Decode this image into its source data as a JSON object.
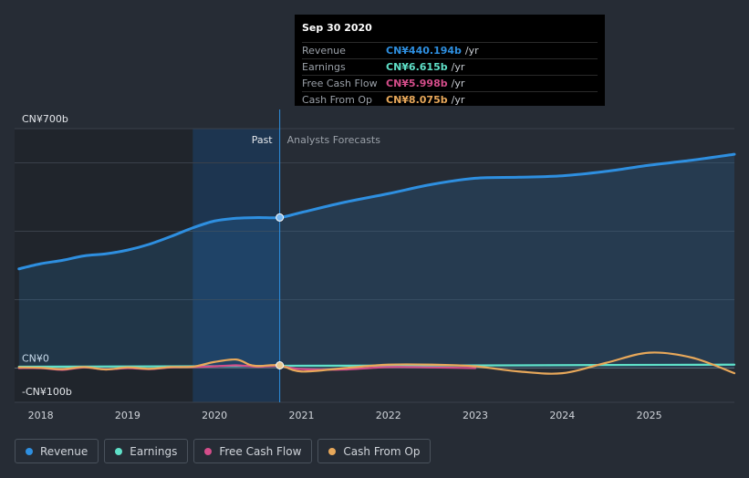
{
  "chart_data": {
    "type": "area",
    "ylabel_top": "CN¥700b",
    "ylabel_zero": "CN¥0",
    "ylabel_bottom": "-CN¥100b",
    "ylim": [
      -100,
      700
    ],
    "xlim": [
      2017.7,
      2025.98
    ],
    "x_ticks": [
      "2018",
      "2019",
      "2020",
      "2021",
      "2022",
      "2023",
      "2024",
      "2025"
    ],
    "past_label": "Past",
    "forecast_label": "Analysts Forecasts",
    "divider_x": 2020.75,
    "series": [
      {
        "name": "Revenue",
        "color": "#2e8fe0",
        "fill": true,
        "x": [
          2017.75,
          2018.0,
          2018.25,
          2018.5,
          2018.75,
          2019.0,
          2019.25,
          2019.5,
          2019.75,
          2020.0,
          2020.25,
          2020.5,
          2020.75,
          2021.0,
          2021.5,
          2022.0,
          2022.5,
          2023.0,
          2023.5,
          2024.0,
          2024.5,
          2025.0,
          2025.5,
          2025.98
        ],
        "values": [
          290,
          305,
          315,
          328,
          334,
          345,
          362,
          385,
          410,
          430,
          438,
          440,
          440.194,
          455,
          485,
          510,
          537,
          555,
          558,
          562,
          575,
          593,
          608,
          625
        ]
      },
      {
        "name": "Earnings",
        "color": "#5fe0c8",
        "x": [
          2017.75,
          2018.5,
          2019.5,
          2020.0,
          2020.25,
          2020.5,
          2020.75,
          2021.5,
          2022.5,
          2023.5,
          2024.5,
          2025.98
        ],
        "values": [
          4,
          4.5,
          5,
          5.5,
          6,
          6.2,
          6.615,
          7,
          7.5,
          8,
          9,
          10
        ]
      },
      {
        "name": "Free Cash Flow",
        "color": "#d44d8a",
        "x": [
          2017.75,
          2018.0,
          2018.25,
          2018.5,
          2018.75,
          2019.0,
          2019.25,
          2019.5,
          2019.75,
          2020.0,
          2020.25,
          2020.5,
          2020.75,
          2021.0,
          2021.5,
          2022.0,
          2022.5,
          2023.0
        ],
        "values": [
          0,
          0,
          -5,
          2,
          -4,
          0,
          -3,
          2,
          3,
          5,
          8,
          4,
          5.998,
          -3,
          -4,
          3,
          2,
          0
        ]
      },
      {
        "name": "Cash From Op",
        "color": "#e8a85a",
        "x": [
          2017.75,
          2018.0,
          2018.25,
          2018.5,
          2018.75,
          2019.0,
          2019.25,
          2019.5,
          2019.75,
          2020.0,
          2020.25,
          2020.4,
          2020.5,
          2020.75,
          2021.0,
          2021.5,
          2022.0,
          2022.5,
          2023.0,
          2023.5,
          2024.0,
          2024.5,
          2025.0,
          2025.5,
          2025.98
        ],
        "values": [
          2,
          1,
          -3,
          3,
          -4,
          2,
          -2,
          3,
          4,
          18,
          25,
          10,
          6,
          8.075,
          -10,
          0,
          10,
          10,
          5,
          -10,
          -15,
          15,
          45,
          30,
          -15
        ]
      }
    ],
    "hover": {
      "date": "Sep 30 2020",
      "rows": [
        {
          "label": "Revenue",
          "value": "CN¥440.194b",
          "unit": "/yr",
          "color": "#2e8fe0"
        },
        {
          "label": "Earnings",
          "value": "CN¥6.615b",
          "unit": "/yr",
          "color": "#5fe0c8"
        },
        {
          "label": "Free Cash Flow",
          "value": "CN¥5.998b",
          "unit": "/yr",
          "color": "#d44d8a"
        },
        {
          "label": "Cash From Op",
          "value": "CN¥8.075b",
          "unit": "/yr",
          "color": "#e8a85a"
        }
      ]
    }
  },
  "legend": [
    {
      "label": "Revenue",
      "color": "#2e8fe0"
    },
    {
      "label": "Earnings",
      "color": "#5fe0c8"
    },
    {
      "label": "Free Cash Flow",
      "color": "#d44d8a"
    },
    {
      "label": "Cash From Op",
      "color": "#e8a85a"
    }
  ]
}
